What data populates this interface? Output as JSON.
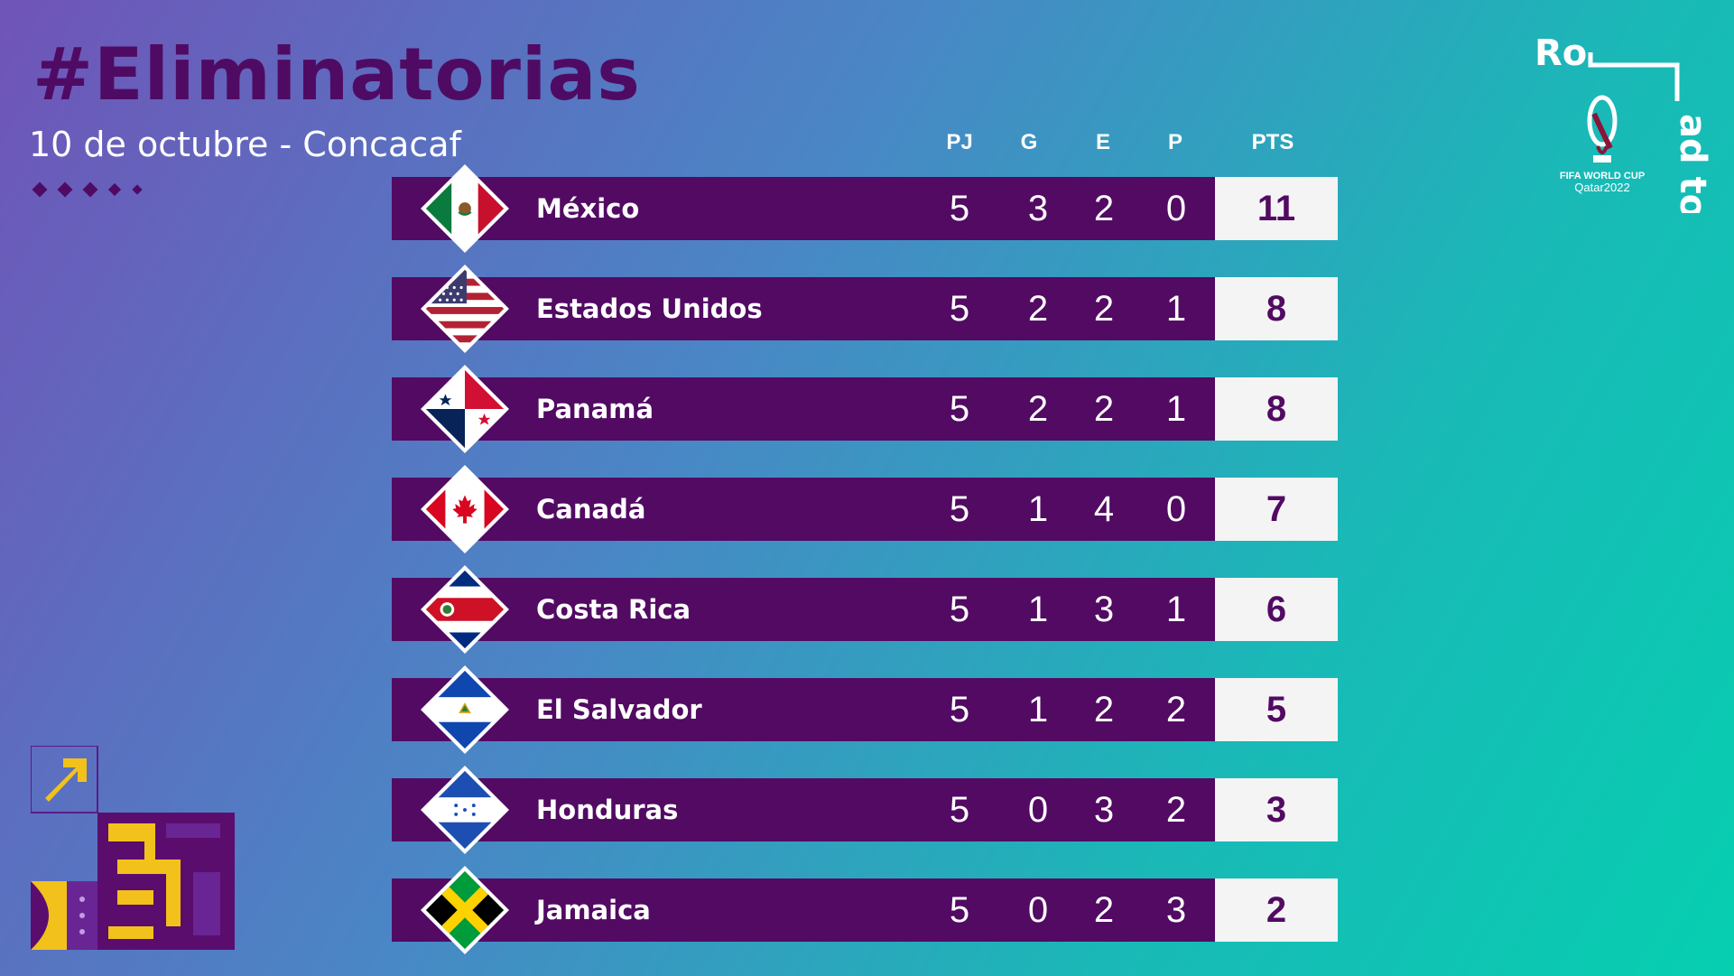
{
  "header": {
    "title": "#Eliminatorias",
    "subtitle": "10 de octubre - Concacaf"
  },
  "columns": {
    "pj": "PJ",
    "g": "G",
    "e": "E",
    "p": "P",
    "pts": "PTS"
  },
  "standings": [
    {
      "team": "México",
      "flag_icon": "mexico-flag-icon",
      "pj": "5",
      "g": "3",
      "e": "2",
      "p": "0",
      "pts": "11"
    },
    {
      "team": "Estados Unidos",
      "flag_icon": "usa-flag-icon",
      "pj": "5",
      "g": "2",
      "e": "2",
      "p": "1",
      "pts": "8"
    },
    {
      "team": "Panamá",
      "flag_icon": "panama-flag-icon",
      "pj": "5",
      "g": "2",
      "e": "2",
      "p": "1",
      "pts": "8"
    },
    {
      "team": "Canadá",
      "flag_icon": "canada-flag-icon",
      "pj": "5",
      "g": "1",
      "e": "4",
      "p": "0",
      "pts": "7"
    },
    {
      "team": "Costa Rica",
      "flag_icon": "costa-rica-flag-icon",
      "pj": "5",
      "g": "1",
      "e": "3",
      "p": "1",
      "pts": "6"
    },
    {
      "team": "El Salvador",
      "flag_icon": "el-salvador-flag-icon",
      "pj": "5",
      "g": "1",
      "e": "2",
      "p": "2",
      "pts": "5"
    },
    {
      "team": "Honduras",
      "flag_icon": "honduras-flag-icon",
      "pj": "5",
      "g": "0",
      "e": "3",
      "p": "2",
      "pts": "3"
    },
    {
      "team": "Jamaica",
      "flag_icon": "jamaica-flag-icon",
      "pj": "5",
      "g": "0",
      "e": "2",
      "p": "3",
      "pts": "2"
    }
  ],
  "logo": {
    "road_to_text": "Road to",
    "world_cup_text": "FIFA WORLD CUP",
    "edition_text": "Qatar2022"
  },
  "colors": {
    "bar": "#520a63",
    "title": "#4f0b63",
    "pts_box": "#f4f4f4",
    "deco_yellow": "#f2c11b"
  }
}
